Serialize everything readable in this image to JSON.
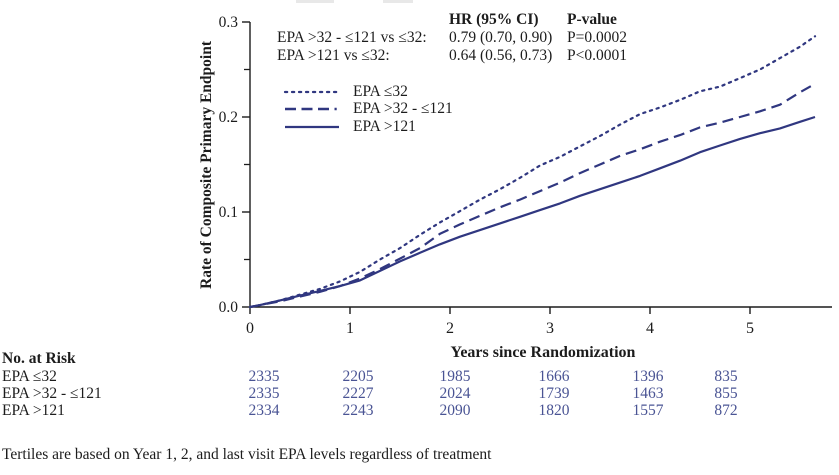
{
  "chart_data": {
    "type": "line",
    "title": "",
    "xlabel": "Years since Randomization",
    "ylabel": "Rate of Composite Primary Endpoint",
    "xlim": [
      0,
      5.8
    ],
    "ylim": [
      0,
      0.3
    ],
    "xticks": [
      0,
      1,
      2,
      3,
      4,
      5
    ],
    "yticks": [
      0.0,
      0.1,
      0.2,
      0.3
    ],
    "yticks_minor": [
      0.05,
      0.15,
      0.25
    ],
    "grid": false,
    "legend_position": "upper-left-inside",
    "line_color": "#303780",
    "series": [
      {
        "name": "EPA ≤32",
        "style": "dotted",
        "x": [
          0,
          0.1,
          0.3,
          0.5,
          0.7,
          0.9,
          1.1,
          1.3,
          1.5,
          1.7,
          1.9,
          2.1,
          2.3,
          2.5,
          2.7,
          2.9,
          3.1,
          3.3,
          3.5,
          3.7,
          3.9,
          4.1,
          4.3,
          4.5,
          4.7,
          4.9,
          5.1,
          5.3,
          5.5,
          5.65
        ],
        "y": [
          0,
          0.002,
          0.007,
          0.013,
          0.019,
          0.027,
          0.037,
          0.05,
          0.062,
          0.076,
          0.089,
          0.101,
          0.113,
          0.124,
          0.136,
          0.149,
          0.158,
          0.169,
          0.18,
          0.192,
          0.203,
          0.21,
          0.218,
          0.227,
          0.232,
          0.241,
          0.25,
          0.262,
          0.274,
          0.285
        ]
      },
      {
        "name": "EPA >32 - ≤121",
        "style": "dashed",
        "x": [
          0,
          0.1,
          0.3,
          0.5,
          0.7,
          0.9,
          1.1,
          1.3,
          1.5,
          1.7,
          1.9,
          2.1,
          2.3,
          2.5,
          2.7,
          2.9,
          3.1,
          3.3,
          3.5,
          3.7,
          3.9,
          4.1,
          4.3,
          4.5,
          4.7,
          4.9,
          5.1,
          5.3,
          5.5,
          5.65
        ],
        "y": [
          0,
          0.002,
          0.006,
          0.011,
          0.016,
          0.022,
          0.03,
          0.04,
          0.051,
          0.062,
          0.077,
          0.087,
          0.096,
          0.105,
          0.113,
          0.122,
          0.131,
          0.141,
          0.15,
          0.159,
          0.166,
          0.174,
          0.181,
          0.189,
          0.194,
          0.2,
          0.206,
          0.213,
          0.226,
          0.235
        ]
      },
      {
        "name": "EPA >121",
        "style": "solid",
        "x": [
          0,
          0.1,
          0.3,
          0.5,
          0.7,
          0.9,
          1.1,
          1.3,
          1.5,
          1.7,
          1.9,
          2.1,
          2.3,
          2.5,
          2.7,
          2.9,
          3.1,
          3.3,
          3.5,
          3.7,
          3.9,
          4.1,
          4.3,
          4.5,
          4.7,
          4.9,
          5.1,
          5.3,
          5.5,
          5.65
        ],
        "y": [
          0,
          0.002,
          0.007,
          0.012,
          0.017,
          0.022,
          0.028,
          0.038,
          0.048,
          0.057,
          0.066,
          0.074,
          0.081,
          0.088,
          0.095,
          0.102,
          0.109,
          0.117,
          0.124,
          0.131,
          0.138,
          0.146,
          0.154,
          0.163,
          0.17,
          0.177,
          0.183,
          0.188,
          0.195,
          0.2
        ]
      }
    ]
  },
  "stats": {
    "hr_header": "HR (95% CI)",
    "p_header": "P-value",
    "rows": [
      {
        "label": "EPA >32 - ≤121 vs ≤32:",
        "hr": "0.79 (0.70, 0.90)",
        "p": "P=0.0002"
      },
      {
        "label": "EPA >121 vs ≤32:",
        "hr": "0.64 (0.56, 0.73)",
        "p": "P<0.0001"
      }
    ]
  },
  "legend": {
    "items": [
      {
        "label": "EPA ≤32",
        "style": "dotted"
      },
      {
        "label": "EPA >32 - ≤121",
        "style": "dashed"
      },
      {
        "label": "EPA >121",
        "style": "solid"
      }
    ]
  },
  "risk_table": {
    "title": "No. at Risk",
    "rows": [
      {
        "label": "EPA ≤32",
        "values": [
          "2335",
          "2205",
          "1985",
          "1666",
          "1396",
          "835"
        ]
      },
      {
        "label": "EPA >32 - ≤121",
        "values": [
          "2335",
          "2227",
          "2024",
          "1739",
          "1463",
          "855"
        ]
      },
      {
        "label": "EPA >121",
        "values": [
          "2334",
          "2243",
          "2090",
          "1820",
          "1557",
          "872"
        ]
      }
    ],
    "number_color": "#4a5494"
  },
  "footnote": "Tertiles are based on Year 1, 2, and last visit EPA levels regardless of treatment"
}
